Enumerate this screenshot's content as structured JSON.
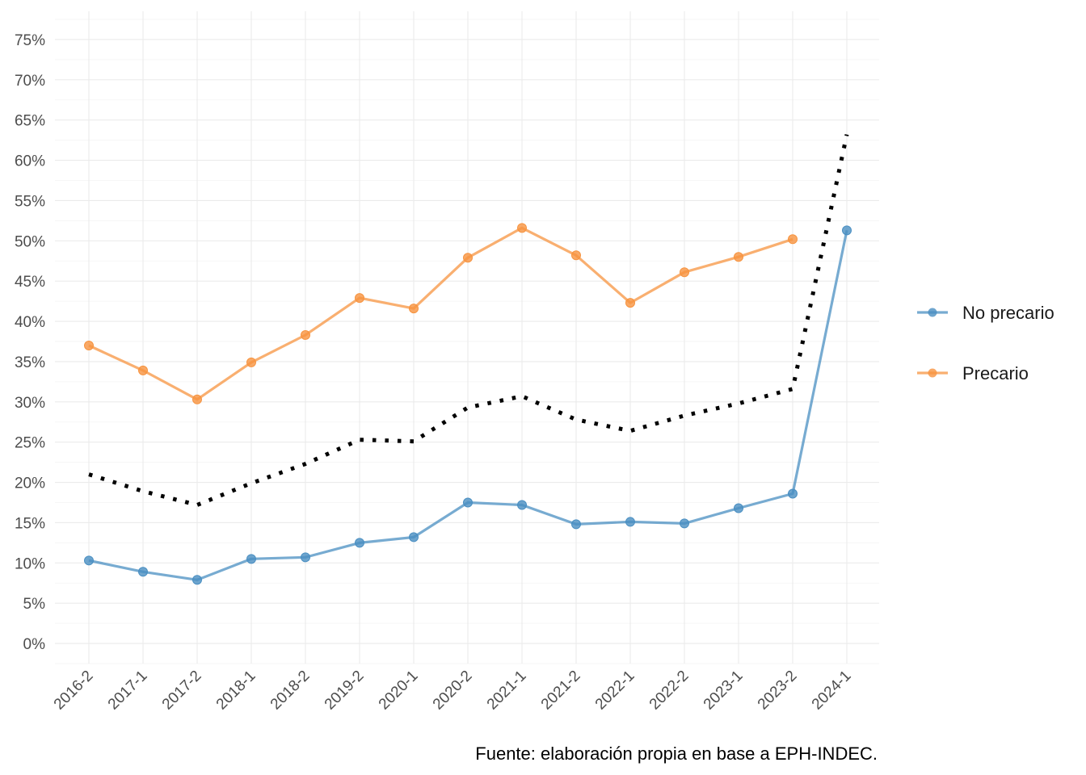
{
  "chart_data": {
    "type": "line",
    "title": "",
    "xlabel": "",
    "ylabel": "",
    "categories": [
      "2016-2",
      "2017-1",
      "2017-2",
      "2018-1",
      "2018-2",
      "2019-2",
      "2020-1",
      "2020-2",
      "2021-1",
      "2021-2",
      "2022-1",
      "2022-2",
      "2023-1",
      "2023-2",
      "2024-1"
    ],
    "ylim": [
      -2.5,
      78.5
    ],
    "y_ticks": [
      0,
      5,
      10,
      15,
      20,
      25,
      30,
      35,
      40,
      45,
      50,
      55,
      60,
      65,
      70,
      75
    ],
    "y_tick_labels": [
      "0%",
      "5%",
      "10%",
      "15%",
      "20%",
      "25%",
      "30%",
      "35%",
      "40%",
      "45%",
      "50%",
      "55%",
      "60%",
      "65%",
      "70%",
      "75%"
    ],
    "y_unit": "%",
    "grid": true,
    "legend_position": "right",
    "series": [
      {
        "name": "No precario",
        "color": "#4A8FC2",
        "values": [
          10.3,
          8.9,
          7.9,
          10.5,
          10.7,
          12.5,
          13.2,
          17.5,
          17.2,
          14.8,
          15.1,
          14.9,
          16.8,
          18.6,
          51.3
        ]
      },
      {
        "name": "Precario",
        "color": "#F79440",
        "values": [
          37.0,
          33.9,
          30.3,
          34.9,
          38.3,
          42.9,
          41.6,
          47.9,
          51.6,
          48.2,
          42.3,
          46.1,
          48.0,
          50.2,
          null
        ]
      },
      {
        "name": "",
        "color": "#000000",
        "style": "dotted",
        "values": [
          21.0,
          18.9,
          17.2,
          19.9,
          22.3,
          25.3,
          25.1,
          29.3,
          30.7,
          27.8,
          26.4,
          28.3,
          29.8,
          31.6,
          63.2
        ]
      }
    ],
    "caption": "Fuente: elaboración propia en base a EPH-INDEC."
  }
}
